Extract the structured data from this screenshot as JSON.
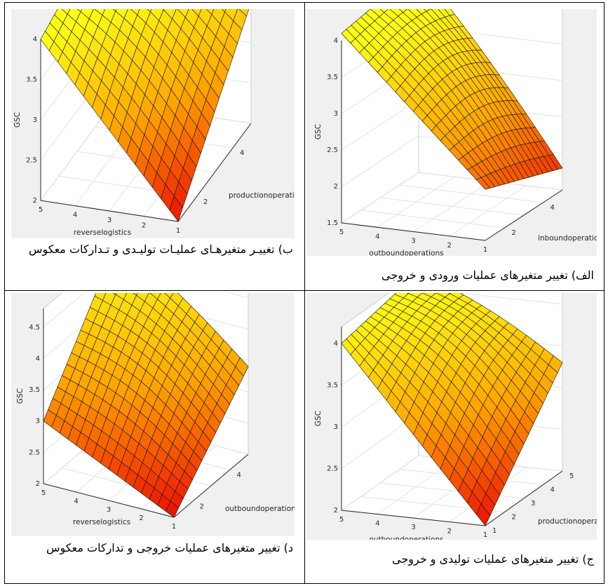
{
  "panels": [
    {
      "id": "top-left",
      "caption": "ب) تغییـر متغیرهـای عملیـات تولیـدی و تـدارکات معکوس",
      "chart_data": {
        "type": "surface",
        "zlabel": "GSC",
        "xlabel": "reverselogistics",
        "ylabel": "productionoperations",
        "x_ticks": [
          "5",
          "4",
          "3",
          "2",
          "1"
        ],
        "y_ticks": [
          "2",
          "4"
        ],
        "z_ticks": [
          "2",
          "2.5",
          "3",
          "3.5",
          "4"
        ],
        "zlim": [
          2,
          4
        ],
        "corners": {
          "x5_y1": 4.0,
          "x1_y1": 2.0,
          "x5_y5": 4.4,
          "x1_y5": 3.5
        },
        "grid": true
      }
    },
    {
      "id": "top-right",
      "caption": "الف) تغییر متغیرهای عملیات ورودی و خروجی",
      "chart_data": {
        "type": "surface",
        "zlabel": "GSC",
        "xlabel": "outboundoperations",
        "ylabel": "inboundoperations",
        "x_ticks": [
          "5",
          "4",
          "3",
          "2",
          "1"
        ],
        "y_ticks": [
          "2",
          "4"
        ],
        "z_ticks": [
          "1.5",
          "2",
          "2.5",
          "3",
          "3.5",
          "4"
        ],
        "zlim": [
          1.5,
          4
        ],
        "corners": {
          "x5_y1": 4.1,
          "x1_y1": 2.2,
          "x5_y5": 4.3,
          "x1_y5": 1.8
        },
        "grid": true
      }
    },
    {
      "id": "bottom-left",
      "caption": "د) تغییر متغیرهای عملیات خروجی و تدارکات معکوس",
      "chart_data": {
        "type": "surface",
        "zlabel": "GSC",
        "xlabel": "reverselogistics",
        "ylabel": "outboundoperations",
        "x_ticks": [
          "5",
          "4",
          "3",
          "2",
          "1"
        ],
        "y_ticks": [
          "2",
          "4"
        ],
        "z_ticks": [
          "2",
          "2.5",
          "3",
          "3.5",
          "4",
          "4.5"
        ],
        "zlim": [
          2,
          4.8
        ],
        "corners": {
          "x5_y1": 3.0,
          "x1_y1": 2.0,
          "x5_y5": 4.9,
          "x1_y5": 3.4
        },
        "grid": true
      }
    },
    {
      "id": "bottom-right",
      "caption": "ج) تغییر متغیرهای عملیات تولیدی و خروجی",
      "chart_data": {
        "type": "surface",
        "zlabel": "GSC",
        "xlabel": "outboundoperations",
        "ylabel": "productionoperations",
        "x_ticks": [
          "5",
          "4",
          "3",
          "2",
          "1"
        ],
        "y_ticks": [
          "1",
          "2",
          "3",
          "4",
          "5"
        ],
        "z_ticks": [
          "2",
          "2.5",
          "3",
          "3.5",
          "4"
        ],
        "zlim": [
          2,
          4.2
        ],
        "corners": {
          "x5_y1": 4.0,
          "x1_y1": 2.0,
          "x5_y5": 4.2,
          "x1_y5": 3.3
        },
        "grid": true
      }
    }
  ]
}
